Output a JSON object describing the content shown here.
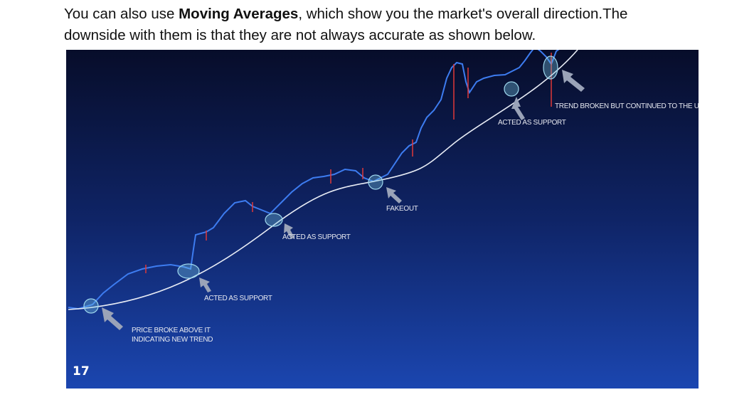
{
  "paragraph": {
    "line1_before": "You can also use ",
    "line1_bold": "Moving Averages",
    "line1_after": ", which show you the market's overall direction.The",
    "line2": "downside with them is that they are not always accurate as shown below."
  },
  "annotations": [
    {
      "lines": [
        "PRICE BROKE ABOVE IT",
        "INDICATING NEW TREND"
      ]
    },
    {
      "lines": [
        "ACTED AS SUPPORT"
      ]
    },
    {
      "lines": [
        "ACTED AS SUPPORT"
      ]
    },
    {
      "lines": [
        "FAKEOUT"
      ]
    },
    {
      "lines": [
        "ACTED AS SUPPORT"
      ]
    },
    {
      "lines": [
        "TREND BROKEN BUT CONTINUED TO THE UPSIDE"
      ]
    }
  ]
}
